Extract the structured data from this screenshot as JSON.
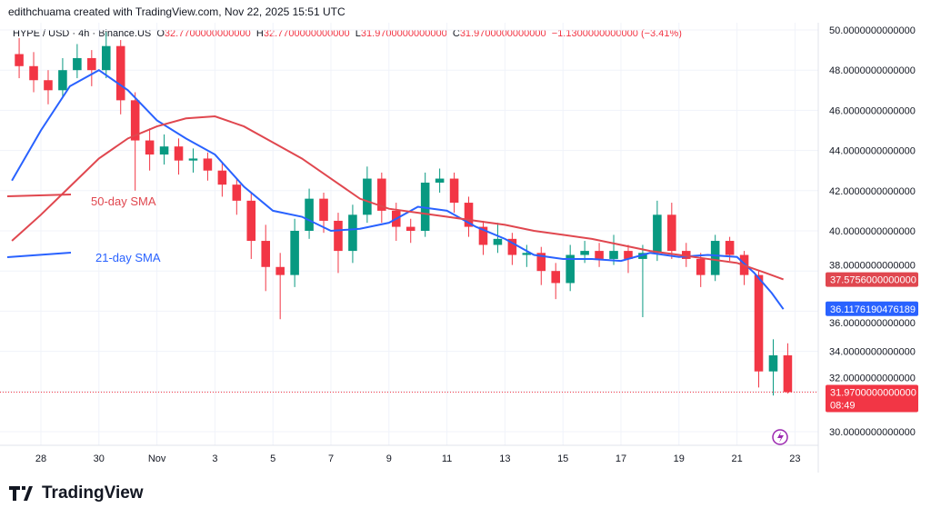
{
  "credit": "edithchuama created with TradingView.com, Nov 22, 2025 15:51 UTC",
  "header": {
    "symbol": "HYPE / USD · 4h · Binance.US",
    "o_label": "O",
    "o": "32.7700000000000",
    "h_label": "H",
    "h": "32.7700000000000",
    "l_label": "L",
    "l": "31.9700000000000",
    "c_label": "C",
    "c": "31.9700000000000",
    "change": "−1.1300000000000 (−3.41%)"
  },
  "colors": {
    "up": "#089981",
    "down": "#f23645",
    "sma21": "#2962ff",
    "sma50": "#e0474f",
    "grid": "#f0f3fa"
  },
  "chart_data": {
    "type": "candlestick",
    "interval": "4h",
    "ylim": [
      29,
      50.2
    ],
    "yticks": [
      "50.0000000000000",
      "48.0000000000000",
      "46.0000000000000",
      "44.0000000000000",
      "42.0000000000000",
      "40.0000000000000",
      "38.0000000000000",
      "36.0000000000000",
      "34.0000000000000",
      "32.0000000000000",
      "30.0000000000000"
    ],
    "ytick_values": [
      50,
      48,
      46,
      44,
      42,
      40,
      38,
      36,
      34,
      32,
      30
    ],
    "xticks": [
      {
        "label": "28",
        "day": 28
      },
      {
        "label": "30",
        "day": 30
      },
      {
        "label": "Nov",
        "day": 32
      },
      {
        "label": "3",
        "day": 34
      },
      {
        "label": "5",
        "day": 36
      },
      {
        "label": "7",
        "day": 38
      },
      {
        "label": "9",
        "day": 40
      },
      {
        "label": "11",
        "day": 42
      },
      {
        "label": "13",
        "day": 44
      },
      {
        "label": "15",
        "day": 46
      },
      {
        "label": "17",
        "day": 48
      },
      {
        "label": "19",
        "day": 50
      },
      {
        "label": "21",
        "day": 52
      },
      {
        "label": "23",
        "day": 54
      }
    ],
    "candles_start_day": 27,
    "candle_step_days": 0.5,
    "candles": [
      [
        48.8,
        49.6,
        47.6,
        48.2
      ],
      [
        48.2,
        48.9,
        46.9,
        47.5
      ],
      [
        47.5,
        48.0,
        46.3,
        47.0
      ],
      [
        47.0,
        48.6,
        46.6,
        48.0
      ],
      [
        48.0,
        49.3,
        47.6,
        48.6
      ],
      [
        48.6,
        49.0,
        47.2,
        48.0
      ],
      [
        48.0,
        49.9,
        47.6,
        49.2
      ],
      [
        49.2,
        49.5,
        45.8,
        46.5
      ],
      [
        46.5,
        46.9,
        42.0,
        44.5
      ],
      [
        44.5,
        45.1,
        43.0,
        43.8
      ],
      [
        43.8,
        44.8,
        43.3,
        44.2
      ],
      [
        44.2,
        44.6,
        42.8,
        43.5
      ],
      [
        43.5,
        44.1,
        42.9,
        43.6
      ],
      [
        43.6,
        43.9,
        42.5,
        43.0
      ],
      [
        43.0,
        43.4,
        41.7,
        42.3
      ],
      [
        42.3,
        42.6,
        40.8,
        41.5
      ],
      [
        41.5,
        41.9,
        38.6,
        39.5
      ],
      [
        39.5,
        40.3,
        37.0,
        38.2
      ],
      [
        38.2,
        38.9,
        35.6,
        37.8
      ],
      [
        37.8,
        40.6,
        37.2,
        40.0
      ],
      [
        40.0,
        42.1,
        39.6,
        41.6
      ],
      [
        41.6,
        41.9,
        39.9,
        40.5
      ],
      [
        40.5,
        40.9,
        37.9,
        39.0
      ],
      [
        39.0,
        41.3,
        38.4,
        40.8
      ],
      [
        40.8,
        43.2,
        40.4,
        42.6
      ],
      [
        42.6,
        42.9,
        40.4,
        41.0
      ],
      [
        41.0,
        41.4,
        39.5,
        40.2
      ],
      [
        40.2,
        40.6,
        39.4,
        40.0
      ],
      [
        40.0,
        42.9,
        39.7,
        42.4
      ],
      [
        42.4,
        43.1,
        41.9,
        42.6
      ],
      [
        42.6,
        42.9,
        40.9,
        41.4
      ],
      [
        41.4,
        41.7,
        39.7,
        40.2
      ],
      [
        40.2,
        40.5,
        38.8,
        39.3
      ],
      [
        39.3,
        40.4,
        38.9,
        39.6
      ],
      [
        39.6,
        39.9,
        38.3,
        38.8
      ],
      [
        38.8,
        39.3,
        38.2,
        38.9
      ],
      [
        38.9,
        39.2,
        37.3,
        38.0
      ],
      [
        38.0,
        38.4,
        36.6,
        37.4
      ],
      [
        37.4,
        39.3,
        37.0,
        38.8
      ],
      [
        38.8,
        39.5,
        38.4,
        39.0
      ],
      [
        39.0,
        39.4,
        38.2,
        38.6
      ],
      [
        38.6,
        39.8,
        38.3,
        39.0
      ],
      [
        39.0,
        39.3,
        37.9,
        38.6
      ],
      [
        38.6,
        39.3,
        35.7,
        38.9
      ],
      [
        38.9,
        41.5,
        38.5,
        40.8
      ],
      [
        40.8,
        41.4,
        38.6,
        39.0
      ],
      [
        39.0,
        39.4,
        38.2,
        38.6
      ],
      [
        38.6,
        38.9,
        37.2,
        37.8
      ],
      [
        37.8,
        39.8,
        37.5,
        39.5
      ],
      [
        39.5,
        39.7,
        38.5,
        38.8
      ],
      [
        38.8,
        39.0,
        37.3,
        37.8
      ],
      [
        37.8,
        38.0,
        32.2,
        33.0
      ],
      [
        33.0,
        34.6,
        31.8,
        33.8
      ],
      [
        33.8,
        34.4,
        31.9,
        31.97
      ]
    ],
    "series": [
      {
        "name": "21-day SMA",
        "color": "#2962ff",
        "current": "36.1176190476189",
        "points": [
          [
            27,
            42.5
          ],
          [
            28,
            45
          ],
          [
            29,
            47.2
          ],
          [
            30,
            48
          ],
          [
            31,
            47
          ],
          [
            32,
            45.5
          ],
          [
            33,
            44.6
          ],
          [
            34,
            43.8
          ],
          [
            35,
            42.2
          ],
          [
            36,
            41
          ],
          [
            37,
            40.7
          ],
          [
            38,
            40
          ],
          [
            39,
            40.1
          ],
          [
            40,
            40.4
          ],
          [
            41,
            41.2
          ],
          [
            42,
            41
          ],
          [
            43,
            40.2
          ],
          [
            44,
            39.6
          ],
          [
            45,
            38.8
          ],
          [
            46,
            38.6
          ],
          [
            47,
            38.6
          ],
          [
            48,
            38.5
          ],
          [
            49,
            38.9
          ],
          [
            50,
            38.7
          ],
          [
            51,
            38.8
          ],
          [
            52,
            38.7
          ],
          [
            52.6,
            37.9
          ],
          [
            53.2,
            36.9
          ],
          [
            53.6,
            36.1
          ]
        ]
      },
      {
        "name": "50-day SMA",
        "color": "#e0474f",
        "current": "37.5756000000000",
        "points": [
          [
            27,
            39.5
          ],
          [
            28,
            40.8
          ],
          [
            29,
            42.2
          ],
          [
            30,
            43.6
          ],
          [
            31,
            44.6
          ],
          [
            32,
            45.2
          ],
          [
            33,
            45.6
          ],
          [
            34,
            45.7
          ],
          [
            35,
            45.2
          ],
          [
            36,
            44.4
          ],
          [
            37,
            43.6
          ],
          [
            38,
            42.6
          ],
          [
            39,
            41.6
          ],
          [
            40,
            41.1
          ],
          [
            41,
            40.9
          ],
          [
            42,
            40.7
          ],
          [
            43,
            40.5
          ],
          [
            44,
            40.3
          ],
          [
            45,
            40
          ],
          [
            46,
            39.8
          ],
          [
            47,
            39.6
          ],
          [
            48,
            39.3
          ],
          [
            49,
            39.0
          ],
          [
            50,
            38.8
          ],
          [
            51,
            38.6
          ],
          [
            52,
            38.4
          ],
          [
            53,
            37.9
          ],
          [
            53.6,
            37.58
          ]
        ]
      }
    ],
    "annotations": [
      {
        "text": "50-day SMA",
        "color": "#e0474f"
      },
      {
        "text": "21-day SMA",
        "color": "#2962ff"
      }
    ],
    "last_price": "31.9700000000000",
    "countdown": "08:49"
  },
  "brand": "TradingView"
}
